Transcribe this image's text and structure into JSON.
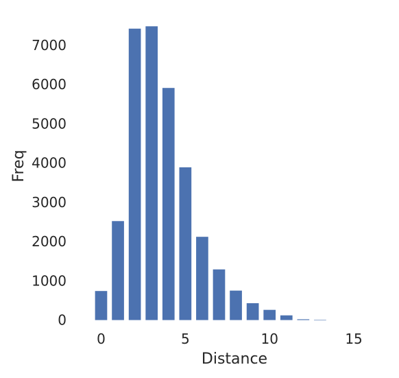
{
  "chart_data": {
    "type": "bar",
    "title": "",
    "xlabel": "Distance",
    "ylabel": "Freq",
    "x": [
      0,
      1,
      2,
      3,
      4,
      5,
      6,
      7,
      8,
      9,
      10,
      11,
      12,
      13,
      14,
      15
    ],
    "values": [
      740,
      2520,
      7420,
      7480,
      5910,
      3890,
      2120,
      1290,
      750,
      430,
      260,
      120,
      20,
      2,
      0,
      0
    ],
    "xlim": [
      -1.2,
      16.3
    ],
    "ylim": [
      -200,
      7800
    ],
    "xticks": [
      0,
      5,
      10,
      15
    ],
    "yticks": [
      0,
      1000,
      2000,
      3000,
      4000,
      5000,
      6000,
      7000
    ],
    "grid": false,
    "legend": "none",
    "bar_color": "#4c72b0"
  }
}
